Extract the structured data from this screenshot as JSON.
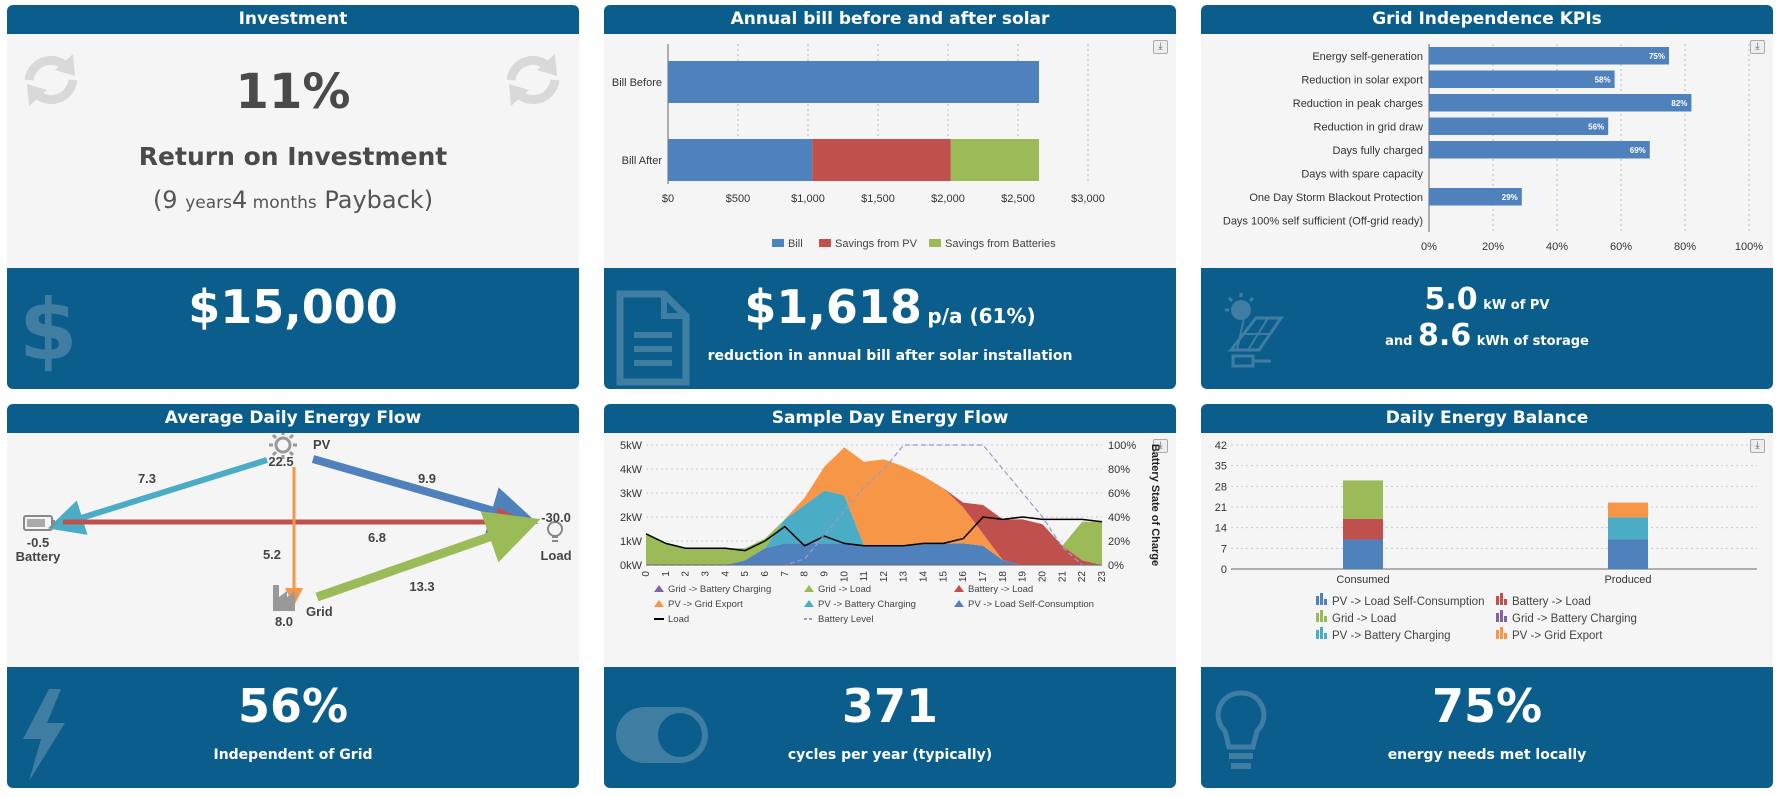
{
  "investment": {
    "title": "Investment",
    "roi": "11%",
    "roi_label": "Return on Investment",
    "payback": {
      "open": "(9 ",
      "years_unit": "years",
      "months": "4",
      "months_unit": " months",
      "close": " Payback)"
    },
    "cost": "$15,000",
    "icons": [
      "refresh-icon",
      "dollar-icon"
    ]
  },
  "bill": {
    "title": "Annual bill before and after solar",
    "savings": "$1,618",
    "savings_suffix": "p/a (61%)",
    "caption": "reduction in annual bill after solar installation",
    "icon": "document-icon"
  },
  "kpi": {
    "title": "Grid Independence KPIs",
    "pv_size": "5.0",
    "pv_unit": "kW of PV",
    "and_label": "and",
    "storage": "8.6",
    "storage_unit": "kWh of storage",
    "icon": "solar-panel-icon"
  },
  "flow": {
    "title": "Average Daily Energy Flow",
    "pv_label": "PV",
    "pv_value": "22.5",
    "battery_label": "Battery",
    "battery_value": "-0.5",
    "load_label": "Load",
    "load_value": "-30.0",
    "grid_label": "Grid",
    "grid_value": "8.0",
    "pv_to_battery": "7.3",
    "pv_to_load": "9.9",
    "battery_to_load": "6.8",
    "pv_to_grid": "5.2",
    "grid_to_load": "13.3",
    "independence": "56%",
    "independence_label": "Independent of Grid",
    "colors": {
      "pv_battery": "#4bacc6",
      "pv_load": "#4f81bd",
      "battery_load": "#c0504d",
      "pv_grid": "#f79646",
      "grid_load": "#9bbb59"
    },
    "icons": [
      "sun-icon",
      "battery-icon",
      "lightbulb-icon",
      "factory-icon",
      "lightning-icon"
    ]
  },
  "sample": {
    "title": "Sample Day Energy Flow",
    "cycles": "371",
    "cycles_label": "cycles per year (typically)",
    "icon": "toggle-icon"
  },
  "balance": {
    "title": "Daily Energy Balance",
    "met": "75%",
    "met_label": "energy needs met locally",
    "icon": "lightbulb-icon"
  },
  "chart_data": [
    {
      "id": "bill",
      "type": "bar",
      "orientation": "horizontal",
      "stacked": true,
      "categories": [
        "Bill Before",
        "Bill After"
      ],
      "series": [
        {
          "name": "Bill",
          "color": "#4f81bd",
          "values": [
            2650,
            1030
          ]
        },
        {
          "name": "Savings from PV",
          "color": "#c0504d",
          "values": [
            0,
            990
          ]
        },
        {
          "name": "Savings from Batteries",
          "color": "#9bbb59",
          "values": [
            0,
            630
          ]
        }
      ],
      "xlim": [
        0,
        3000
      ],
      "xticks": [
        "$0",
        "$500",
        "$1,000",
        "$1,500",
        "$2,000",
        "$2,500",
        "$3,000"
      ],
      "legend": "bottom"
    },
    {
      "id": "kpi",
      "type": "bar",
      "orientation": "horizontal",
      "categories": [
        "Energy self-generation",
        "Reduction in solar export",
        "Reduction in peak charges",
        "Reduction in grid draw",
        "Days fully charged",
        "Days with spare capacity",
        "One Day Storm Blackout Protection",
        "Days 100% self sufficient (Off-grid ready)"
      ],
      "values": [
        75,
        58,
        82,
        56,
        69,
        0,
        29,
        0
      ],
      "labels": [
        "75%",
        "58%",
        "82%",
        "56%",
        "69%",
        "",
        "29%",
        ""
      ],
      "color": "#4f81bd",
      "xlim": [
        0,
        100
      ],
      "xticks": [
        "0%",
        "20%",
        "40%",
        "60%",
        "80%",
        "100%"
      ]
    },
    {
      "id": "sample",
      "type": "area",
      "x": [
        0,
        1,
        2,
        3,
        4,
        5,
        6,
        7,
        8,
        9,
        10,
        11,
        12,
        13,
        14,
        15,
        16,
        17,
        18,
        19,
        20,
        21,
        22,
        23
      ],
      "yleft_ticks": [
        "0kW",
        "1kW",
        "2kW",
        "3kW",
        "4kW",
        "5kW"
      ],
      "yright_ticks": [
        "0%",
        "20%",
        "40%",
        "60%",
        "80%",
        "100%"
      ],
      "yright_label": "Battery State of Charge",
      "series": [
        {
          "name": "Grid -> Battery Charging",
          "color": "#8064a2",
          "values": [
            0,
            0,
            0,
            0,
            0,
            0,
            0,
            0,
            0,
            0,
            0,
            0,
            0,
            0,
            0,
            0,
            0,
            0,
            0,
            0,
            0,
            0,
            0,
            0
          ]
        },
        {
          "name": "Grid -> Load",
          "color": "#9bbb59",
          "values": [
            1.3,
            0.9,
            0.7,
            0.7,
            0.7,
            0.5,
            0.4,
            0,
            0,
            0,
            0,
            0,
            0,
            0,
            0,
            0,
            0,
            0,
            0,
            0,
            0,
            0,
            1.6,
            1.8
          ]
        },
        {
          "name": "Battery -> Load",
          "color": "#c0504d",
          "values": [
            0,
            0,
            0,
            0,
            0,
            0,
            0,
            0,
            0,
            0,
            0,
            0,
            0,
            0,
            0,
            0,
            0.2,
            1.2,
            1.7,
            1.9,
            1.7,
            0.8,
            0.2,
            0
          ]
        },
        {
          "name": "PV -> Grid Export",
          "color": "#f79646",
          "values": [
            0,
            0,
            0,
            0,
            0,
            0,
            0,
            0,
            0.3,
            1.0,
            2.0,
            3.5,
            3.6,
            3.3,
            2.8,
            2.3,
            1.5,
            0.5,
            0,
            0,
            0,
            0,
            0,
            0
          ]
        },
        {
          "name": "PV -> Battery Charging",
          "color": "#4bacc6",
          "values": [
            0,
            0,
            0,
            0,
            0,
            0,
            0,
            1.0,
            1.6,
            2.2,
            2.0,
            0,
            0,
            0,
            0,
            0,
            0,
            0,
            0,
            0,
            0,
            0,
            0,
            0
          ]
        },
        {
          "name": "PV -> Load Self-Consumption",
          "color": "#4f81bd",
          "values": [
            0,
            0,
            0,
            0,
            0,
            0.2,
            0.7,
            0.9,
            0.9,
            0.9,
            0.9,
            0.8,
            0.8,
            0.8,
            0.9,
            0.9,
            0.9,
            0.8,
            0.2,
            0,
            0,
            0,
            0,
            0
          ]
        },
        {
          "name": "Load",
          "color": "#000000",
          "values": [
            1.3,
            0.9,
            0.7,
            0.7,
            0.7,
            0.6,
            1.0,
            1.6,
            0.8,
            1.2,
            0.9,
            0.8,
            0.8,
            0.8,
            0.9,
            0.9,
            1.1,
            2.0,
            1.9,
            2.0,
            1.9,
            1.9,
            1.9,
            1.8
          ]
        },
        {
          "name": "Battery Level",
          "color": "#9999cc",
          "values": [
            0,
            0,
            0,
            0,
            0,
            0,
            0,
            0,
            5,
            25,
            45,
            65,
            80,
            100,
            100,
            100,
            100,
            100,
            80,
            60,
            40,
            15,
            0,
            0
          ]
        }
      ],
      "legend": "bottom"
    },
    {
      "id": "balance",
      "type": "bar",
      "stacked": true,
      "categories": [
        "Consumed",
        "Produced"
      ],
      "series": [
        {
          "name": "PV -> Load Self-Consumption",
          "color": "#4f81bd",
          "values": [
            10,
            10
          ]
        },
        {
          "name": "Battery -> Load",
          "color": "#c0504d",
          "values": [
            7,
            0
          ]
        },
        {
          "name": "Grid -> Load",
          "color": "#9bbb59",
          "values": [
            13,
            0
          ]
        },
        {
          "name": "Grid -> Battery Charging",
          "color": "#8064a2",
          "values": [
            0,
            0
          ]
        },
        {
          "name": "PV -> Battery Charging",
          "color": "#4bacc6",
          "values": [
            0,
            7.5
          ]
        },
        {
          "name": "PV -> Grid Export",
          "color": "#f79646",
          "values": [
            0,
            5
          ]
        }
      ],
      "ylim": [
        0,
        42
      ],
      "yticks": [
        "0",
        "7",
        "14",
        "21",
        "28",
        "35",
        "42"
      ],
      "legend": "bottom"
    }
  ]
}
